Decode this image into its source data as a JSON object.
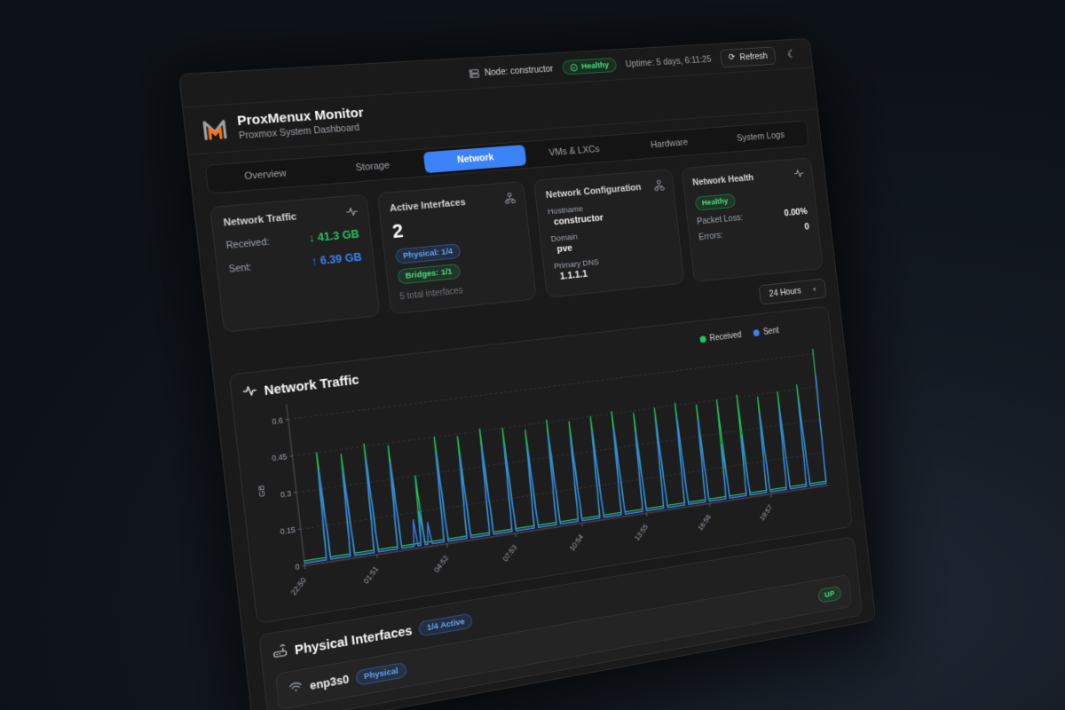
{
  "topbar": {
    "node_label": "Node: constructor",
    "health_badge": "Healthy",
    "uptime": "Uptime: 5 days, 6:11:25",
    "refresh_label": "Refresh"
  },
  "brand": {
    "title": "ProxMenux Monitor",
    "subtitle": "Proxmox System Dashboard"
  },
  "tabs": {
    "labels": [
      "Overview",
      "Storage",
      "Network",
      "VMs & LXCs",
      "Hardware",
      "System Logs"
    ],
    "active": "Network"
  },
  "cards": {
    "traffic": {
      "title": "Network Traffic",
      "received_label": "Received:",
      "received_value": "↓ 41.3 GB",
      "sent_label": "Sent:",
      "sent_value": "↑ 6.39 GB"
    },
    "interfaces": {
      "title": "Active Interfaces",
      "count": "2",
      "physical_badge": "Physical: 1/4",
      "bridges_badge": "Bridges: 1/1",
      "total": "5 total interfaces"
    },
    "config": {
      "title": "Network Configuration",
      "hostname_label": "Hostname",
      "hostname": "constructor",
      "domain_label": "Domain",
      "domain": "pve",
      "dns_label": "Primary DNS",
      "dns": "1.1.1.1"
    },
    "health": {
      "title": "Network Health",
      "status": "Healthy",
      "packet_loss_label": "Packet Loss:",
      "packet_loss": "0.00%",
      "errors_label": "Errors:",
      "errors": "0"
    }
  },
  "time_range": {
    "selected": "24 Hours"
  },
  "chart_data": {
    "type": "line",
    "title": "Network Traffic",
    "ylabel": "GB",
    "ylim": [
      0,
      0.65
    ],
    "yticks": [
      0,
      0.15,
      0.3,
      0.45,
      0.6
    ],
    "xticks": [
      "22:50",
      "01:51",
      "04:52",
      "07:53",
      "10:54",
      "13:55",
      "16:56",
      "19:57"
    ],
    "xtick_hours": [
      0,
      3.02,
      6.03,
      9.05,
      12.07,
      15.08,
      18.1,
      21.12
    ],
    "x_unit": "hours_since_start",
    "grid": "dashed-horizontal",
    "legend_position": "top-right",
    "series": [
      {
        "name": "Received",
        "color": "#22c55e",
        "baseline": 0.02,
        "spikes": [
          [
            1,
            0.45
          ],
          [
            2,
            0.43
          ],
          [
            3,
            0.46
          ],
          [
            4,
            0.44
          ],
          [
            5,
            0.3
          ],
          [
            6,
            0.45
          ],
          [
            7,
            0.44
          ],
          [
            8,
            0.46
          ],
          [
            9,
            0.45
          ],
          [
            10,
            0.43
          ],
          [
            11,
            0.46
          ],
          [
            12,
            0.44
          ],
          [
            13,
            0.45
          ],
          [
            14,
            0.46
          ],
          [
            15,
            0.44
          ],
          [
            16,
            0.45
          ],
          [
            17,
            0.46
          ],
          [
            18,
            0.44
          ],
          [
            19,
            0.45
          ],
          [
            20,
            0.46
          ],
          [
            21,
            0.44
          ],
          [
            22,
            0.45
          ],
          [
            23,
            0.47
          ],
          [
            24,
            0.62
          ]
        ]
      },
      {
        "name": "Sent",
        "color": "#3b82f6",
        "baseline": 0.01,
        "spikes": [
          [
            1,
            0.38
          ],
          [
            2,
            0.36
          ],
          [
            3,
            0.4
          ],
          [
            4,
            0.37
          ],
          [
            4.7,
            0.12
          ],
          [
            5,
            0.15
          ],
          [
            5.3,
            0.1
          ],
          [
            6,
            0.38
          ],
          [
            7,
            0.36
          ],
          [
            8,
            0.39
          ],
          [
            9,
            0.37
          ],
          [
            10,
            0.36
          ],
          [
            11,
            0.4
          ],
          [
            12,
            0.37
          ],
          [
            13,
            0.38
          ],
          [
            14,
            0.39
          ],
          [
            15,
            0.36
          ],
          [
            16,
            0.38
          ],
          [
            17,
            0.4
          ],
          [
            18,
            0.37
          ],
          [
            19,
            0.25
          ],
          [
            20,
            0.28
          ],
          [
            21,
            0.37
          ],
          [
            22,
            0.38
          ],
          [
            23,
            0.4
          ],
          [
            24,
            0.5
          ]
        ]
      }
    ]
  },
  "physical": {
    "title": "Physical Interfaces",
    "active_badge": "1/4 Active",
    "rows": [
      {
        "name": "enp3s0",
        "type_badge": "Physical",
        "status": "UP"
      }
    ]
  }
}
